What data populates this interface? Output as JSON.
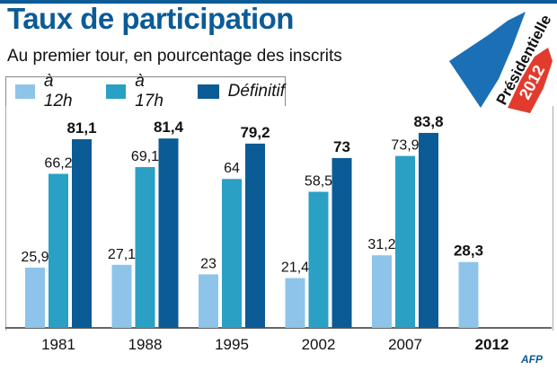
{
  "chart_data": {
    "type": "bar",
    "title": "Taux de participation",
    "subtitle": "Au premier tour, en pourcentage des inscrits",
    "categories": [
      "1981",
      "1988",
      "1995",
      "2002",
      "2007",
      "2012"
    ],
    "series": [
      {
        "name": "à 12h",
        "color": "#8ec4ea",
        "values": [
          25.9,
          27.1,
          23,
          21.4,
          31.2,
          28.3
        ],
        "labels": [
          "25,9",
          "27,1",
          "23",
          "21,4",
          "31,2",
          "28,3"
        ]
      },
      {
        "name": "à 17h",
        "color": "#2aa0c4",
        "values": [
          66.2,
          69.1,
          64,
          58.5,
          73.9,
          null
        ],
        "labels": [
          "66,2",
          "69,1",
          "64",
          "58,5",
          "73,9",
          ""
        ]
      },
      {
        "name": "Définitif",
        "color": "#0b5b96",
        "values": [
          81.1,
          81.4,
          79.2,
          73,
          83.8,
          null
        ],
        "labels": [
          "81,1",
          "81,4",
          "79,2",
          "73",
          "83,8",
          ""
        ]
      }
    ],
    "xlabel": "",
    "ylabel": "",
    "ylim": [
      0,
      100
    ],
    "grid": false,
    "legend": "top-left"
  },
  "logo": {
    "line1": "Présidentielle",
    "line2": "2012",
    "colors": [
      "#1b6fb5",
      "#e23b2e"
    ]
  },
  "source": "AFP"
}
